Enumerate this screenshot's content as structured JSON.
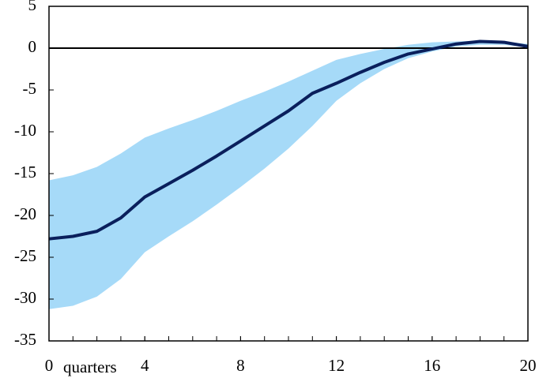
{
  "chart_data": {
    "type": "band-line",
    "x_label": "quarters",
    "x": [
      0,
      1,
      2,
      3,
      4,
      5,
      6,
      7,
      8,
      9,
      10,
      11,
      12,
      13,
      14,
      15,
      16,
      17,
      18,
      19,
      20
    ],
    "band": {
      "color": "#a6daf8",
      "lower": [
        -31.2,
        -30.8,
        -29.7,
        -27.6,
        -24.4,
        -22.5,
        -20.7,
        -18.7,
        -16.6,
        -14.4,
        -12.0,
        -9.3,
        -6.3,
        -4.2,
        -2.5,
        -1.2,
        -0.4,
        0.2,
        0.4,
        0.4,
        0.1
      ],
      "upper": [
        -15.8,
        -15.2,
        -14.2,
        -12.6,
        -10.7,
        -9.6,
        -8.6,
        -7.5,
        -6.3,
        -5.2,
        -4.0,
        -2.7,
        -1.4,
        -0.7,
        -0.1,
        0.4,
        0.7,
        0.8,
        0.9,
        0.8,
        0.5
      ]
    },
    "series": [
      {
        "color": "#0a1f5c",
        "values": [
          -22.8,
          -22.5,
          -21.9,
          -20.3,
          -17.8,
          -16.2,
          -14.6,
          -12.9,
          -11.1,
          -9.3,
          -7.5,
          -5.4,
          -4.2,
          -2.9,
          -1.7,
          -0.7,
          -0.1,
          0.5,
          0.8,
          0.7,
          0.2
        ]
      }
    ],
    "xlim": [
      0,
      20
    ],
    "xticks": [
      0,
      4,
      8,
      12,
      16,
      20
    ],
    "ylim": [
      -35,
      5
    ],
    "yticks": [
      -35,
      -30,
      -25,
      -20,
      -15,
      -10,
      -5,
      0,
      5
    ],
    "hline": 0
  }
}
